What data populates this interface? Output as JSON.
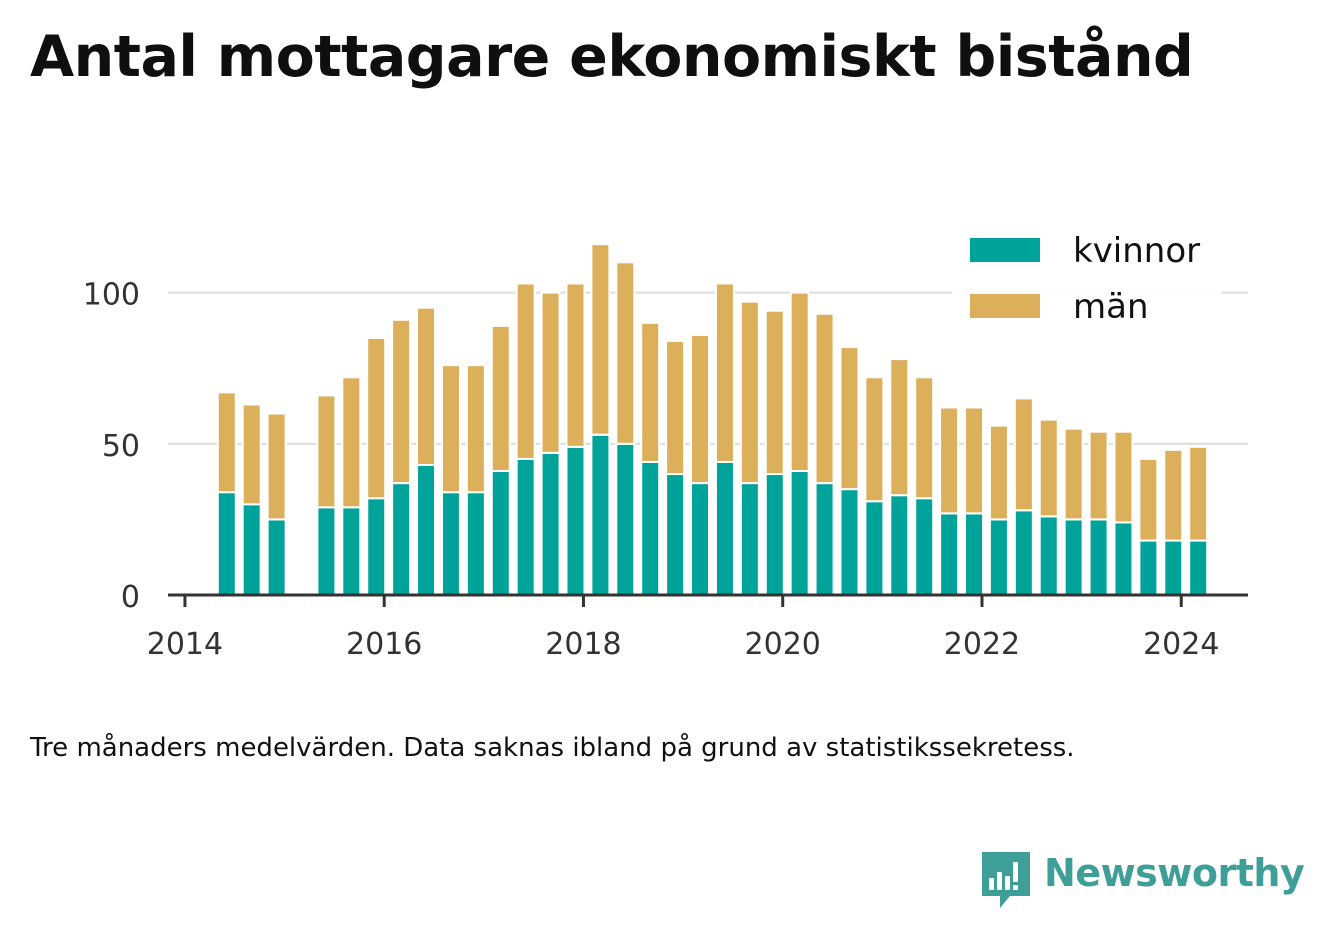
{
  "chart_data": {
    "type": "bar",
    "stacked": true,
    "title": "Antal mottagare ekonomiskt bistånd",
    "footnote": "Tre månaders medelvärden. Data saknas ibland på grund av statistikssekretess.",
    "x": [
      2014.42,
      2014.67,
      2014.92,
      2015.42,
      2015.67,
      2015.92,
      2016.17,
      2016.42,
      2016.67,
      2016.92,
      2017.17,
      2017.42,
      2017.67,
      2017.92,
      2018.17,
      2018.42,
      2018.67,
      2018.92,
      2019.17,
      2019.42,
      2019.67,
      2019.92,
      2020.17,
      2020.42,
      2020.67,
      2020.92,
      2021.17,
      2021.42,
      2021.67,
      2021.92,
      2022.17,
      2022.42,
      2022.67,
      2022.92,
      2023.17,
      2023.42,
      2023.67,
      2023.92,
      2024.17
    ],
    "series": [
      {
        "name": "kvinnor",
        "color": "#00a39a",
        "values": [
          34,
          30,
          25,
          29,
          29,
          32,
          37,
          43,
          34,
          34,
          41,
          45,
          47,
          49,
          53,
          50,
          44,
          40,
          37,
          44,
          37,
          40,
          41,
          37,
          35,
          31,
          33,
          32,
          27,
          27,
          25,
          28,
          26,
          25,
          25,
          24,
          18,
          18,
          18
        ]
      },
      {
        "name": "män",
        "color": "#dcaf5b",
        "values": [
          33,
          33,
          35,
          37,
          43,
          53,
          54,
          52,
          42,
          42,
          48,
          58,
          53,
          54,
          63,
          60,
          46,
          44,
          49,
          59,
          60,
          54,
          59,
          56,
          47,
          41,
          45,
          40,
          35,
          35,
          31,
          37,
          32,
          30,
          29,
          30,
          27,
          30,
          31
        ]
      }
    ],
    "xticks": [
      "2014",
      "2016",
      "2018",
      "2020",
      "2022",
      "2024"
    ],
    "yticks": [
      "0",
      "50",
      "100"
    ],
    "xlim": [
      2013.83,
      2024.67
    ],
    "ylim": [
      0,
      124
    ],
    "grid": true,
    "legend": "top-right"
  },
  "brand": {
    "name": "Newsworthy"
  }
}
